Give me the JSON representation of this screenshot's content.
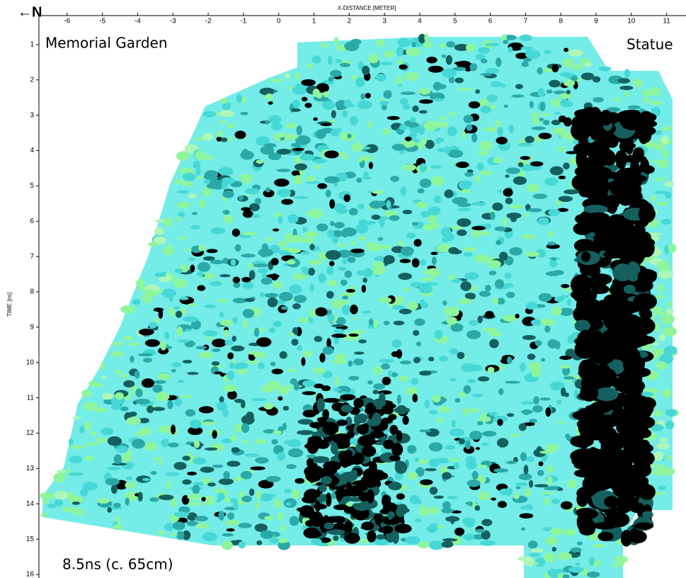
{
  "chart_data": {
    "type": "image",
    "north_label": "←N",
    "xlabel": "X-DISTANCE [METER]",
    "ylabel": "TIME [ns]",
    "xlim": [
      -6.8,
      11.55
    ],
    "xticks": [
      -6,
      -5,
      -4,
      -3,
      -2,
      -1,
      0,
      1,
      2,
      3,
      4,
      5,
      6,
      7,
      8,
      9,
      10,
      11
    ],
    "ylim": [
      0.18,
      16.1
    ],
    "yticks": [
      1,
      2,
      3,
      4,
      5,
      6,
      7,
      8,
      9,
      10,
      11,
      12,
      13,
      14,
      15,
      16
    ],
    "y_inverted": true,
    "grid": false,
    "annotations": [
      "Memorial Garden",
      "Statue",
      "8.5ns (c. 65cm)"
    ]
  }
}
